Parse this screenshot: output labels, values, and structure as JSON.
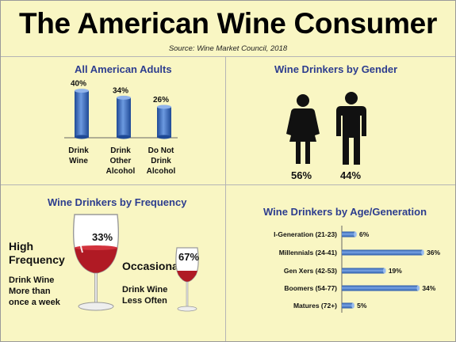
{
  "header": {
    "title": "The American Wine Consumer",
    "source": "Source: Wine Market Council, 2018"
  },
  "panels": {
    "adults": {
      "title": "All American Adults"
    },
    "gender": {
      "title": "Wine Drinkers by Gender"
    },
    "frequency": {
      "title": "Wine Drinkers by Frequency",
      "high_label_1": "High",
      "high_label_2": "Frequency",
      "high_desc_1": "Drink Wine",
      "high_desc_2": "More than",
      "high_desc_3": "once a week",
      "occ_label": "Occasional",
      "occ_desc_1": "Drink Wine",
      "occ_desc_2": "Less Often"
    },
    "age": {
      "title": "Wine Drinkers by Age/Generation"
    }
  },
  "icons": {
    "female": "woman-icon",
    "male": "man-icon",
    "glass": "wine-glass-icon"
  },
  "colors": {
    "background": "#f9f6c3",
    "title_blue": "#2d3d8e",
    "bar_blue": "#3f6fc0",
    "wine_red": "#b01a24",
    "figure": "#111111"
  },
  "chart_data": [
    {
      "type": "bar",
      "title": "All American Adults",
      "categories": [
        "Drink Wine",
        "Drink Other Alcohol",
        "Do Not Drink Alcohol"
      ],
      "category_lines": [
        [
          "Drink",
          "Wine"
        ],
        [
          "Drink",
          "Other",
          "Alcohol"
        ],
        [
          "Do Not",
          "Drink",
          "Alcohol"
        ]
      ],
      "values": [
        40,
        34,
        26
      ],
      "value_labels": [
        "40%",
        "34%",
        "26%"
      ],
      "ylim": [
        0,
        45
      ]
    },
    {
      "type": "pie",
      "title": "Wine Drinkers by Gender",
      "categories": [
        "Female",
        "Male"
      ],
      "values": [
        56,
        44
      ],
      "value_labels": [
        "56%",
        "44%"
      ]
    },
    {
      "type": "pie",
      "title": "Wine Drinkers by Frequency",
      "categories": [
        "High Frequency",
        "Occasional"
      ],
      "values": [
        33,
        67
      ],
      "value_labels": [
        "33%",
        "67%"
      ]
    },
    {
      "type": "bar",
      "orientation": "horizontal",
      "title": "Wine Drinkers by Age/Generation",
      "categories": [
        "I-Generation (21-23)",
        "Millennials (24-41)",
        "Gen Xers (42-53)",
        "Boomers (54-77)",
        "Matures (72+)"
      ],
      "values": [
        6,
        36,
        19,
        34,
        5
      ],
      "value_labels": [
        "6%",
        "36%",
        "19%",
        "34%",
        "5%"
      ],
      "xlim": [
        0,
        36
      ]
    }
  ]
}
